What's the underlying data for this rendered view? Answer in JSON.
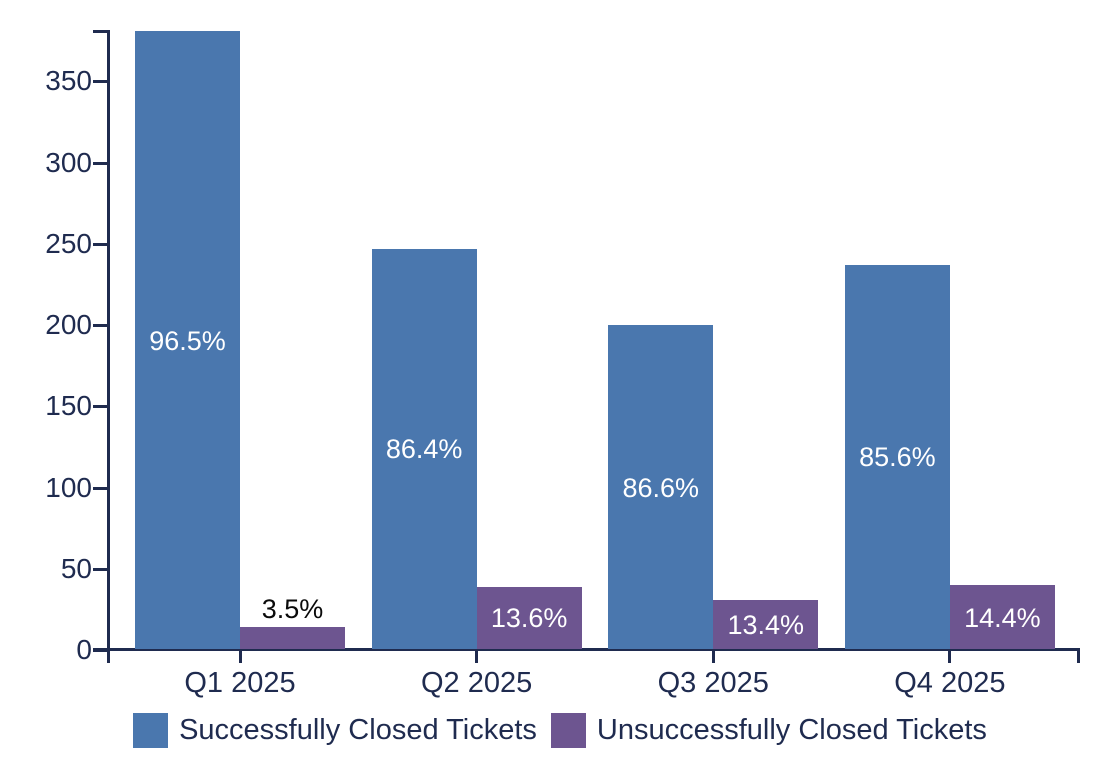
{
  "chart_data": {
    "type": "bar",
    "title": "",
    "xlabel": "",
    "ylabel": "",
    "categories": [
      "Q1 2025",
      "Q2 2025",
      "Q3 2025",
      "Q4 2025"
    ],
    "series": [
      {
        "name": "Successfully Closed Tickets",
        "color": "#4a77ae",
        "values": [
          381,
          247,
          200,
          237
        ],
        "bar_labels": [
          "96.5%",
          "86.4%",
          "86.6%",
          "85.6%"
        ]
      },
      {
        "name": "Unsuccessfully Closed Tickets",
        "color": "#6d5590",
        "values": [
          14,
          39,
          31,
          40
        ],
        "bar_labels": [
          "3.5%",
          "13.6%",
          "13.4%",
          "14.4%"
        ]
      }
    ],
    "ylim": [
      0,
      381
    ],
    "yticks": [
      0,
      50,
      100,
      150,
      200,
      250,
      300,
      350
    ],
    "grid": false,
    "legend_position": "bottom"
  },
  "colors": {
    "axis": "#1f2b4f",
    "tick_label": "#1f2b4f",
    "bar_label_inside": "#ffffff",
    "bar_label_outside": "#0a0a0a",
    "background": "#ffffff",
    "series_blue": "#4a77ae",
    "series_purple": "#6d5590"
  },
  "legend": {
    "items": [
      {
        "label": "Successfully Closed Tickets",
        "color": "#4a77ae"
      },
      {
        "label": "Unsuccessfully Closed Tickets",
        "color": "#6d5590"
      }
    ]
  }
}
